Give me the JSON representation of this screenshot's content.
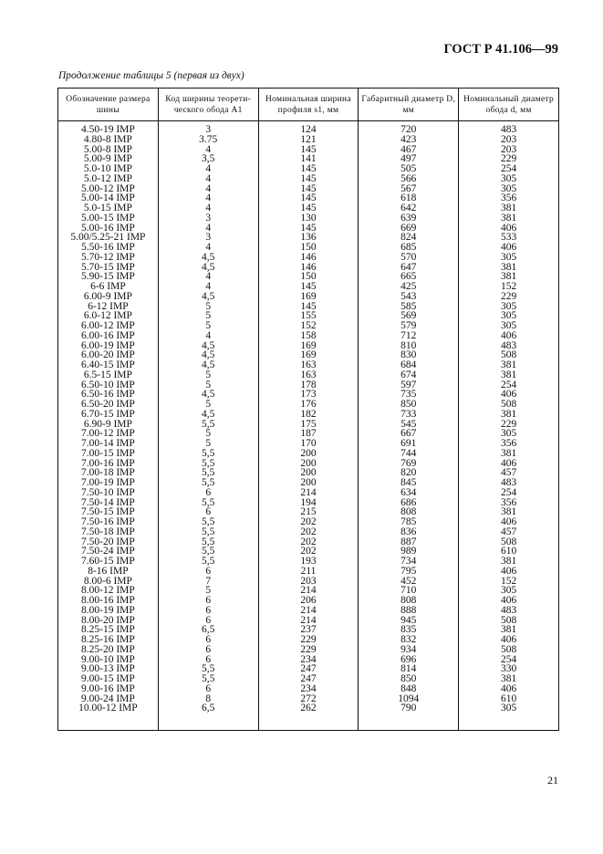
{
  "header": {
    "doc_code": "ГОСТ Р 41.106—99",
    "caption": "Продолжение таблицы 5 (первая из двух)"
  },
  "table": {
    "columns": [
      "Обозначение размера шины",
      "Код ширины теорети-ческого обода A1",
      "Номинальная ширина профиля s1, мм",
      "Габаритный диаметр D, мм",
      "Номинальный диаметр обода d, мм"
    ],
    "rows": [
      [
        "4.50-19 IMP",
        "3",
        "124",
        "720",
        "483"
      ],
      [
        "4.80-8 IMP",
        "3.75",
        "121",
        "423",
        "203"
      ],
      [
        "5.00-8 IMP",
        "4",
        "145",
        "467",
        "203"
      ],
      [
        "5.00-9 IMP",
        "3,5",
        "141",
        "497",
        "229"
      ],
      [
        "5.0-10 IMP",
        "4",
        "145",
        "505",
        "254"
      ],
      [
        "5.0-12 IMP",
        "4",
        "145",
        "566",
        "305"
      ],
      [
        "5.00-12 IMP",
        "4",
        "145",
        "567",
        "305"
      ],
      [
        "5.00-14 IMP",
        "4",
        "145",
        "618",
        "356"
      ],
      [
        "5.0-15 IMP",
        "4",
        "145",
        "642",
        "381"
      ],
      [
        "5.00-15 IMP",
        "3",
        "130",
        "639",
        "381"
      ],
      [
        "5.00-16 IMP",
        "4",
        "145",
        "669",
        "406"
      ],
      [
        "5.00/5.25-21 IMP",
        "3",
        "136",
        "824",
        "533"
      ],
      [
        "5.50-16 IMP",
        "4",
        "150",
        "685",
        "406"
      ],
      [
        "5.70-12 IMP",
        "4,5",
        "146",
        "570",
        "305"
      ],
      [
        "5.70-15 IMP",
        "4,5",
        "146",
        "647",
        "381"
      ],
      [
        "5.90-15 IMP",
        "4",
        "150",
        "665",
        "381"
      ],
      [
        "6-6 IMP",
        "4",
        "145",
        "425",
        "152"
      ],
      [
        "6.00-9 IMP",
        "4,5",
        "169",
        "543",
        "229"
      ],
      [
        "6-12 IMP",
        "5",
        "145",
        "585",
        "305"
      ],
      [
        "6.0-12 IMP",
        "5",
        "155",
        "569",
        "305"
      ],
      [
        "6.00-12 IMP",
        "5",
        "152",
        "579",
        "305"
      ],
      [
        "6.00-16 IMP",
        "4",
        "158",
        "712",
        "406"
      ],
      [
        "6.00-19 IMP",
        "4,5",
        "169",
        "810",
        "483"
      ],
      [
        "6.00-20 IMP",
        "4,5",
        "169",
        "830",
        "508"
      ],
      [
        "6.40-15 IMP",
        "4,5",
        "163",
        "684",
        "381"
      ],
      [
        "6.5-15 IMP",
        "5",
        "163",
        "674",
        "381"
      ],
      [
        "6.50-10 IMP",
        "5",
        "178",
        "597",
        "254"
      ],
      [
        "6.50-16 IMP",
        "4,5",
        "173",
        "735",
        "406"
      ],
      [
        "6.50-20 IMP",
        "5",
        "176",
        "850",
        "508"
      ],
      [
        "6.70-15 IMP",
        "4,5",
        "182",
        "733",
        "381"
      ],
      [
        "6.90-9 IMP",
        "5,5",
        "175",
        "545",
        "229"
      ],
      [
        "7.00-12 IMP",
        "5",
        "187",
        "667",
        "305"
      ],
      [
        "7.00-14 IMP",
        "5",
        "170",
        "691",
        "356"
      ],
      [
        "7.00-15 IMP",
        "5,5",
        "200",
        "744",
        "381"
      ],
      [
        "7.00-16 IMP",
        "5,5",
        "200",
        "769",
        "406"
      ],
      [
        "7.00-18 IMP",
        "5,5",
        "200",
        "820",
        "457"
      ],
      [
        "7.00-19 IMP",
        "5,5",
        "200",
        "845",
        "483"
      ],
      [
        "7.50-10 IMP",
        "6",
        "214",
        "634",
        "254"
      ],
      [
        "7.50-14 IMP",
        "5,5",
        "194",
        "686",
        "356"
      ],
      [
        "7.50-15 IMP",
        "6",
        "215",
        "808",
        "381"
      ],
      [
        "7.50-16 IMP",
        "5,5",
        "202",
        "785",
        "406"
      ],
      [
        "7.50-18 IMP",
        "5,5",
        "202",
        "836",
        "457"
      ],
      [
        "7.50-20 IMP",
        "5,5",
        "202",
        "887",
        "508"
      ],
      [
        "7.50-24 IMP",
        "5,5",
        "202",
        "989",
        "610"
      ],
      [
        "7.60-15 IMP",
        "5,5",
        "193",
        "734",
        "381"
      ],
      [
        "8-16 IMP",
        "6",
        "211",
        "795",
        "406"
      ],
      [
        "8.00-6 IMP",
        "7",
        "203",
        "452",
        "152"
      ],
      [
        "8.00-12 IMP",
        "5",
        "214",
        "710",
        "305"
      ],
      [
        "8.00-16 IMP",
        "6",
        "206",
        "808",
        "406"
      ],
      [
        "8.00-19 IMP",
        "6",
        "214",
        "888",
        "483"
      ],
      [
        "8.00-20 IMP",
        "6",
        "214",
        "945",
        "508"
      ],
      [
        "8.25-15 IMP",
        "6,5",
        "237",
        "835",
        "381"
      ],
      [
        "8.25-16 IMP",
        "6",
        "229",
        "832",
        "406"
      ],
      [
        "8.25-20 IMP",
        "6",
        "229",
        "934",
        "508"
      ],
      [
        "9.00-10 IMP",
        "6",
        "234",
        "696",
        "254"
      ],
      [
        "9.00-13 IMP",
        "5,5",
        "247",
        "814",
        "330"
      ],
      [
        "9.00-15 IMP",
        "5,5",
        "247",
        "850",
        "381"
      ],
      [
        "9.00-16 IMP",
        "6",
        "234",
        "848",
        "406"
      ],
      [
        "9.00-24 IMP",
        "8",
        "272",
        "1094",
        "610"
      ],
      [
        "10.00-12 IMP",
        "6,5",
        "262",
        "790",
        "305"
      ]
    ]
  },
  "footer": {
    "page_number": "21"
  }
}
